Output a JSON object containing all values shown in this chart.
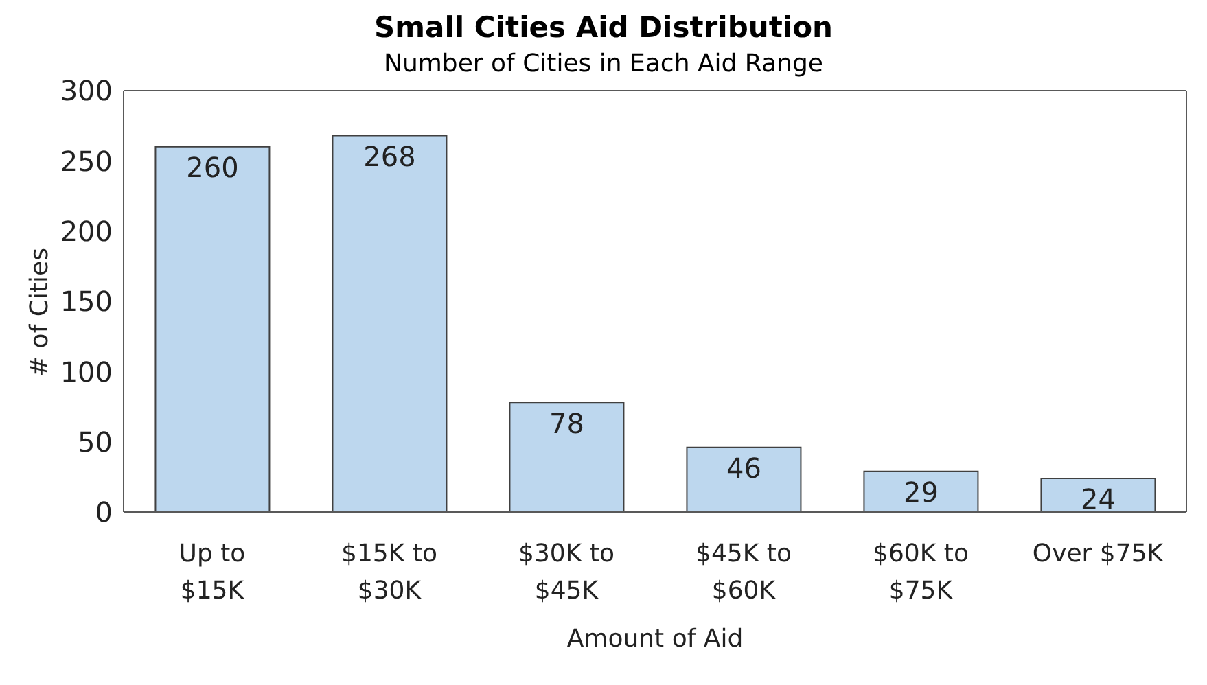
{
  "chart_data": {
    "type": "bar",
    "title": "Small Cities Aid Distribution",
    "subtitle": "Number of Cities in Each Aid Range",
    "xlabel": "Amount of Aid",
    "ylabel": "# of Cities",
    "categories": [
      "Up to $15K",
      "$15K to $30K",
      "$30K to $45K",
      "$45K to $60K",
      "$60K to $75K",
      "Over $75K"
    ],
    "values": [
      260,
      268,
      78,
      46,
      29,
      24
    ],
    "color": "#bdd7ee",
    "ylim": [
      0,
      300
    ],
    "yticks": [
      0,
      50,
      100,
      150,
      200,
      250,
      300
    ],
    "grid": false,
    "data_labels": true
  }
}
